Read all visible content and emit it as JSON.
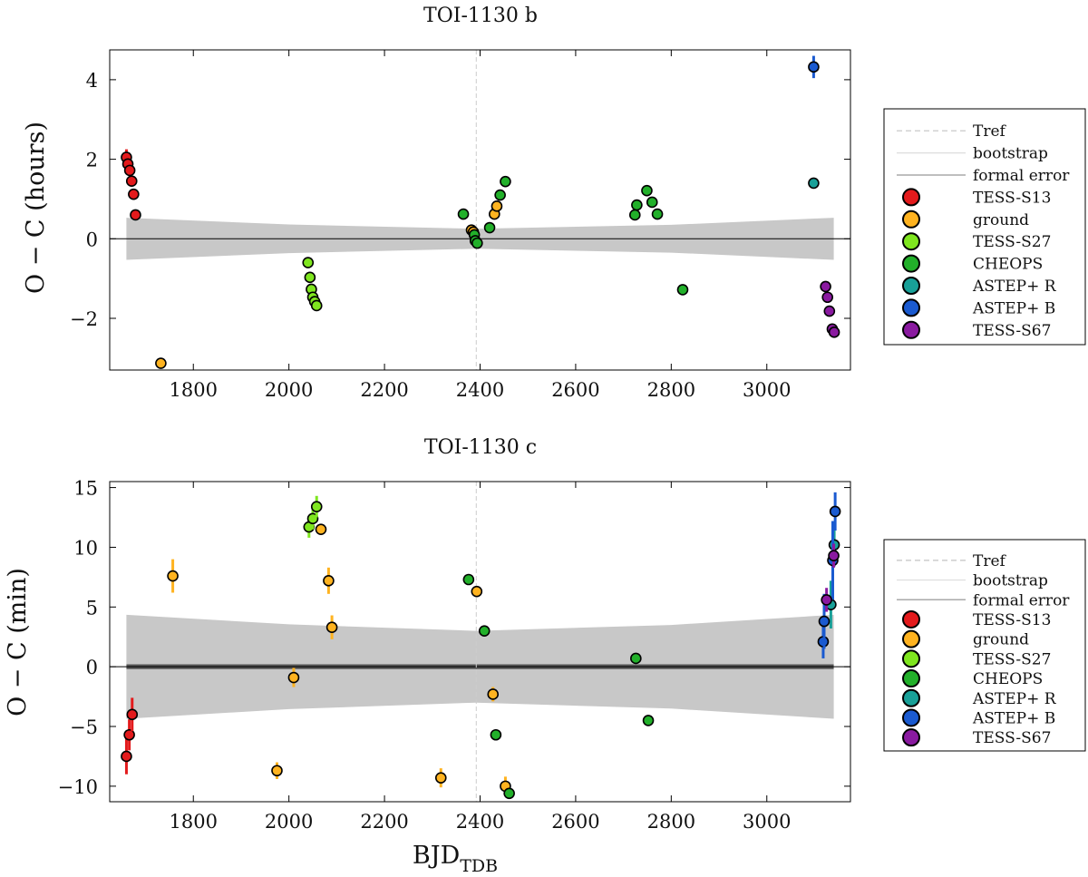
{
  "xlabel": "BJD",
  "xlabel_subscript": "TDB",
  "legend_entries": [
    {
      "label": "Tref",
      "kind": "line"
    },
    {
      "label": "bootstrap",
      "kind": "line"
    },
    {
      "label": "formal error",
      "kind": "line"
    },
    {
      "label": "TESS-S13",
      "kind": "marker",
      "color": "#e31a1c"
    },
    {
      "label": "ground",
      "kind": "marker",
      "color": "#ffb320"
    },
    {
      "label": "TESS-S27",
      "kind": "marker",
      "color": "#7fe61f"
    },
    {
      "label": "CHEOPS",
      "kind": "marker",
      "color": "#22b02a"
    },
    {
      "label": "ASTEP+ R",
      "kind": "marker",
      "color": "#18a098"
    },
    {
      "label": "ASTEP+ B",
      "kind": "marker",
      "color": "#1a5ad0"
    },
    {
      "label": "TESS-S67",
      "kind": "marker",
      "color": "#8a1aa0"
    }
  ],
  "chart_data": [
    {
      "type": "scatter",
      "title": "TOI-1130 b",
      "xlabel": "",
      "ylabel": "O − C (hours)",
      "xlim": [
        1625,
        3175
      ],
      "ylim": [
        -3.3,
        4.75
      ],
      "xticks": [
        1800,
        2000,
        2200,
        2400,
        2600,
        2800,
        3000
      ],
      "yticks": [
        -2,
        0,
        2,
        4
      ],
      "tref": 2392,
      "band": [
        [
          1660,
          0.53
        ],
        [
          2000,
          0.36
        ],
        [
          2392,
          0.25
        ],
        [
          2800,
          0.35
        ],
        [
          3140,
          0.53
        ]
      ],
      "series": [
        {
          "name": "TESS-S13",
          "color": "#e31a1c",
          "points": [
            [
              1660,
              2.05,
              0.2
            ],
            [
              1663,
              1.88,
              0.15
            ],
            [
              1667,
              1.72,
              0.12
            ],
            [
              1671,
              1.45,
              0.12
            ],
            [
              1675,
              1.12,
              0.1
            ],
            [
              1679,
              0.6,
              0.1
            ]
          ]
        },
        {
          "name": "ground",
          "color": "#ffb320",
          "points": [
            [
              1732,
              -3.13,
              0.05
            ],
            [
              2382,
              0.22,
              0.05
            ],
            [
              2386,
              0.17,
              0.05
            ],
            [
              2430,
              0.62,
              0.05
            ],
            [
              2435,
              0.82,
              0.05
            ]
          ]
        },
        {
          "name": "TESS-S27",
          "color": "#7fe61f",
          "points": [
            [
              2040,
              -0.6,
              0.08
            ],
            [
              2044,
              -0.97,
              0.08
            ],
            [
              2047,
              -1.27,
              0.08
            ],
            [
              2050,
              -1.47,
              0.08
            ],
            [
              2054,
              -1.58,
              0.08
            ],
            [
              2058,
              -1.68,
              0.08
            ]
          ]
        },
        {
          "name": "CHEOPS",
          "color": "#22b02a",
          "points": [
            [
              2365,
              0.62,
              0.05
            ],
            [
              2388,
              0.1,
              0.05
            ],
            [
              2390,
              -0.05,
              0.05
            ],
            [
              2394,
              -0.11,
              0.05
            ],
            [
              2420,
              0.28,
              0.05
            ],
            [
              2442,
              1.1,
              0.05
            ],
            [
              2453,
              1.44,
              0.05
            ],
            [
              2724,
              0.6,
              0.08
            ],
            [
              2728,
              0.85,
              0.15
            ],
            [
              2749,
              1.21,
              0.08
            ],
            [
              2760,
              0.92,
              0.08
            ],
            [
              2771,
              0.62,
              0.08
            ],
            [
              2824,
              -1.28,
              0.05
            ]
          ]
        },
        {
          "name": "ASTEP+ R",
          "color": "#18a098",
          "points": [
            [
              3098,
              1.4,
              0.05
            ]
          ]
        },
        {
          "name": "ASTEP+ B",
          "color": "#1a5ad0",
          "points": [
            [
              3098,
              4.32,
              0.28
            ]
          ]
        },
        {
          "name": "TESS-S67",
          "color": "#8a1aa0",
          "points": [
            [
              3123,
              -1.2,
              0.05
            ],
            [
              3127,
              -1.47,
              0.05
            ],
            [
              3131,
              -1.82,
              0.05
            ],
            [
              3137,
              -2.27,
              0.05
            ],
            [
              3141,
              -2.35,
              0.05
            ]
          ]
        }
      ]
    },
    {
      "type": "scatter",
      "title": "TOI-1130 c",
      "xlabel": "",
      "ylabel": "O − C (min)",
      "xlim": [
        1625,
        3175
      ],
      "ylim": [
        -11.3,
        15.5
      ],
      "xticks": [
        1800,
        2000,
        2200,
        2400,
        2600,
        2800,
        3000
      ],
      "yticks": [
        -10,
        -5,
        0,
        5,
        10,
        15
      ],
      "tref": 2392,
      "band": [
        [
          1660,
          4.35
        ],
        [
          2000,
          3.55
        ],
        [
          2392,
          3.0
        ],
        [
          2800,
          3.5
        ],
        [
          3140,
          4.35
        ]
      ],
      "series": [
        {
          "name": "TESS-S13",
          "color": "#e31a1c",
          "points": [
            [
              1660,
              -7.5,
              1.5
            ],
            [
              1666,
              -5.7,
              1.3
            ],
            [
              1672,
              -4.0,
              1.4
            ]
          ]
        },
        {
          "name": "ground",
          "color": "#ffb320",
          "points": [
            [
              1757,
              7.6,
              1.4
            ],
            [
              1975,
              -8.7,
              0.7
            ],
            [
              2010,
              -0.9,
              0.8
            ],
            [
              2067,
              11.5,
              0.5
            ],
            [
              2083,
              7.2,
              1.1
            ],
            [
              2090,
              3.3,
              1.0
            ],
            [
              2318,
              -9.3,
              0.8
            ],
            [
              2393,
              6.3,
              0.5
            ],
            [
              2427,
              -2.3,
              0.6
            ],
            [
              2453,
              -10.0,
              0.8
            ]
          ]
        },
        {
          "name": "TESS-S27",
          "color": "#7fe61f",
          "points": [
            [
              2042,
              11.7,
              0.9
            ],
            [
              2050,
              12.4,
              0.9
            ],
            [
              2058,
              13.4,
              0.9
            ]
          ]
        },
        {
          "name": "CHEOPS",
          "color": "#22b02a",
          "points": [
            [
              2376,
              7.3,
              0.4
            ],
            [
              2409,
              3.0,
              0.4
            ],
            [
              2433,
              -5.7,
              0.4
            ],
            [
              2461,
              -10.6,
              0.4
            ],
            [
              2726,
              0.7,
              0.4
            ],
            [
              2752,
              -4.5,
              0.4
            ]
          ]
        },
        {
          "name": "ASTEP+ R",
          "color": "#18a098",
          "points": [
            [
              3134,
              5.2,
              2.0
            ],
            [
              3141,
              10.2,
              1.8
            ]
          ]
        },
        {
          "name": "ASTEP+ B",
          "color": "#1a5ad0",
          "points": [
            [
              3118,
              2.1,
              1.4
            ],
            [
              3120,
              3.8,
              2.3
            ],
            [
              3138,
              8.9,
              3.3
            ],
            [
              3143,
              13.0,
              1.6
            ]
          ]
        },
        {
          "name": "TESS-S67",
          "color": "#8a1aa0",
          "points": [
            [
              3125,
              5.6,
              1.0
            ],
            [
              3140,
              9.3,
              1.0
            ]
          ]
        }
      ]
    }
  ]
}
